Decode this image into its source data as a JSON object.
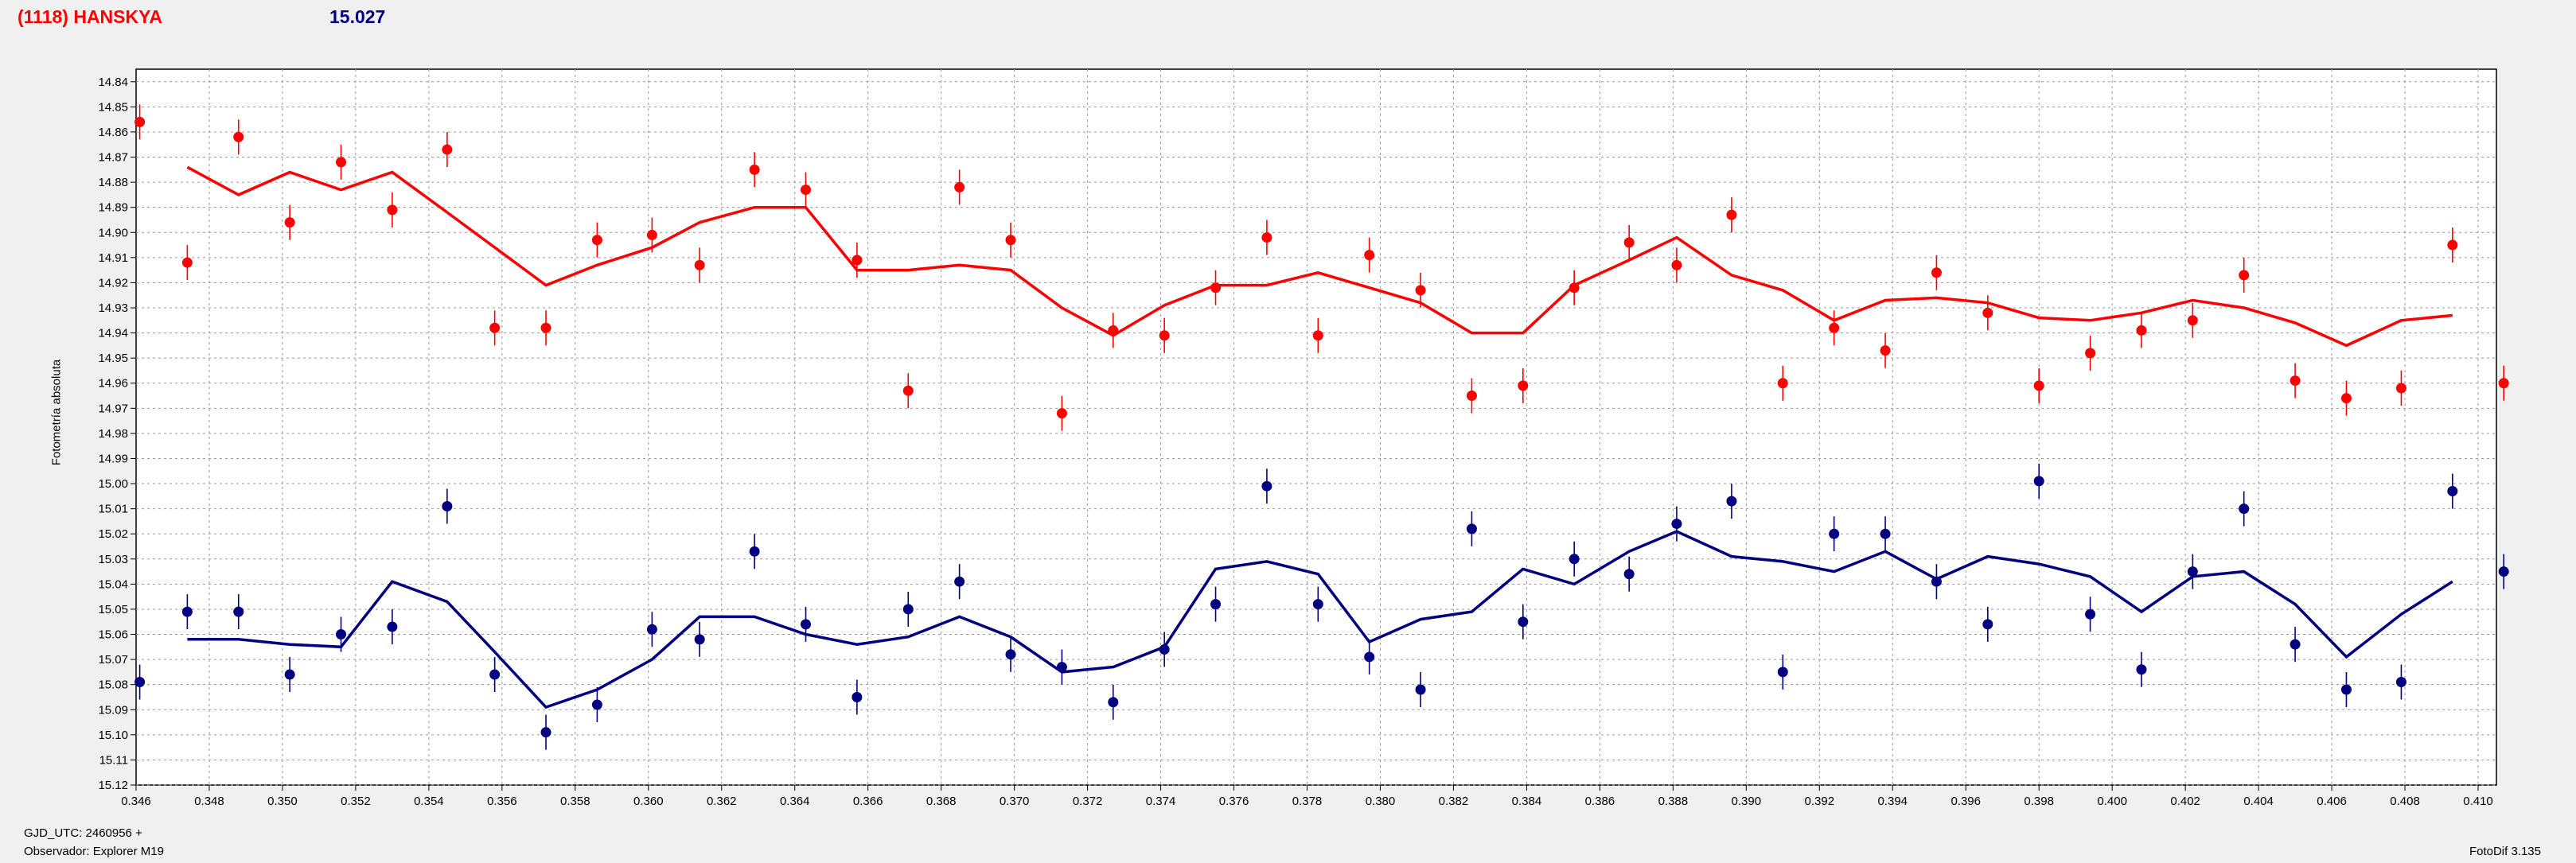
{
  "header": {
    "object_name": "(1118) HANSKYA",
    "magnitude": "15.027"
  },
  "footer": {
    "gjd": "GJD_UTC: 2460956 +",
    "observer": "Observador: Explorer M19",
    "software": "FotoDif 3.135"
  },
  "colors": {
    "series_red": "#ff0000",
    "series_blue": "#000080",
    "background": "#f0f0f0",
    "plot_bg": "#ffffff"
  },
  "chart_data": {
    "type": "scatter",
    "title": "",
    "xlabel": "",
    "ylabel": "Fotometría absoluta",
    "xlim": [
      0.346,
      0.4105
    ],
    "ylim": [
      15.12,
      14.835
    ],
    "y_inverted": true,
    "grid": true,
    "x_ticks": [
      "0.346",
      "0.348",
      "0.350",
      "0.352",
      "0.354",
      "0.356",
      "0.358",
      "0.360",
      "0.362",
      "0.364",
      "0.366",
      "0.368",
      "0.370",
      "0.372",
      "0.374",
      "0.376",
      "0.378",
      "0.380",
      "0.382",
      "0.384",
      "0.386",
      "0.388",
      "0.390",
      "0.392",
      "0.394",
      "0.396",
      "0.398",
      "0.400",
      "0.402",
      "0.404",
      "0.406",
      "0.408",
      "0.410"
    ],
    "y_ticks": [
      "14.84",
      "14.85",
      "14.86",
      "14.87",
      "14.88",
      "14.89",
      "14.90",
      "14.91",
      "14.92",
      "14.93",
      "14.94",
      "14.95",
      "14.96",
      "14.97",
      "14.98",
      "14.99",
      "15.00",
      "15.01",
      "15.02",
      "15.03",
      "15.04",
      "15.05",
      "15.06",
      "15.07",
      "15.08",
      "15.09",
      "15.10",
      "15.11",
      "15.12"
    ],
    "series": [
      {
        "color": "#ff0000",
        "points": [
          [
            0.3461,
            14.856
          ],
          [
            0.3474,
            14.912
          ],
          [
            0.3488,
            14.862
          ],
          [
            0.3502,
            14.896
          ],
          [
            0.3516,
            14.872
          ],
          [
            0.353,
            14.891
          ],
          [
            0.3545,
            14.867
          ],
          [
            0.3558,
            14.938
          ],
          [
            0.3572,
            14.938
          ],
          [
            0.3586,
            14.903
          ],
          [
            0.3601,
            14.901
          ],
          [
            0.3614,
            14.913
          ],
          [
            0.3629,
            14.875
          ],
          [
            0.3643,
            14.883
          ],
          [
            0.3657,
            14.911
          ],
          [
            0.3671,
            14.963
          ],
          [
            0.3685,
            14.882
          ],
          [
            0.3699,
            14.903
          ],
          [
            0.3713,
            14.972
          ],
          [
            0.3727,
            14.939
          ],
          [
            0.3741,
            14.941
          ],
          [
            0.3755,
            14.922
          ],
          [
            0.3769,
            14.902
          ],
          [
            0.3783,
            14.941
          ],
          [
            0.3797,
            14.909
          ],
          [
            0.3811,
            14.923
          ],
          [
            0.3825,
            14.965
          ],
          [
            0.3839,
            14.961
          ],
          [
            0.3853,
            14.922
          ],
          [
            0.3868,
            14.904
          ],
          [
            0.3881,
            14.913
          ],
          [
            0.3896,
            14.893
          ],
          [
            0.391,
            14.96
          ],
          [
            0.3924,
            14.938
          ],
          [
            0.3938,
            14.947
          ],
          [
            0.3952,
            14.916
          ],
          [
            0.3966,
            14.932
          ],
          [
            0.398,
            14.961
          ],
          [
            0.3994,
            14.948
          ],
          [
            0.4008,
            14.939
          ],
          [
            0.4022,
            14.935
          ],
          [
            0.4036,
            14.917
          ],
          [
            0.405,
            14.959
          ],
          [
            0.4064,
            14.966
          ],
          [
            0.4079,
            14.962
          ],
          [
            0.4093,
            14.905
          ],
          [
            0.4107,
            14.96
          ]
        ],
        "fit": [
          [
            0.3474,
            14.874
          ],
          [
            0.3488,
            14.885
          ],
          [
            0.3502,
            14.876
          ],
          [
            0.3516,
            14.883
          ],
          [
            0.353,
            14.876
          ],
          [
            0.3545,
            14.892
          ],
          [
            0.3572,
            14.921
          ],
          [
            0.3586,
            14.913
          ],
          [
            0.3601,
            14.906
          ],
          [
            0.3614,
            14.896
          ],
          [
            0.3629,
            14.89
          ],
          [
            0.3643,
            14.89
          ],
          [
            0.3657,
            14.915
          ],
          [
            0.3671,
            14.915
          ],
          [
            0.3685,
            14.913
          ],
          [
            0.3699,
            14.915
          ],
          [
            0.3713,
            14.93
          ],
          [
            0.3727,
            14.941
          ],
          [
            0.3741,
            14.929
          ],
          [
            0.3755,
            14.921
          ],
          [
            0.3769,
            14.921
          ],
          [
            0.3783,
            14.916
          ],
          [
            0.3797,
            14.922
          ],
          [
            0.3811,
            14.928
          ],
          [
            0.3825,
            14.94
          ],
          [
            0.3839,
            14.94
          ],
          [
            0.3853,
            14.921
          ],
          [
            0.3868,
            14.911
          ],
          [
            0.3881,
            14.902
          ],
          [
            0.3896,
            14.917
          ],
          [
            0.391,
            14.923
          ],
          [
            0.3924,
            14.935
          ],
          [
            0.3938,
            14.927
          ],
          [
            0.3952,
            14.926
          ],
          [
            0.3966,
            14.928
          ],
          [
            0.398,
            14.934
          ],
          [
            0.3994,
            14.935
          ],
          [
            0.4008,
            14.932
          ],
          [
            0.4022,
            14.927
          ],
          [
            0.4036,
            14.93
          ],
          [
            0.405,
            14.936
          ],
          [
            0.4064,
            14.945
          ],
          [
            0.4079,
            14.935
          ],
          [
            0.4093,
            14.933
          ]
        ]
      },
      {
        "color": "#000080",
        "points": [
          [
            0.3461,
            15.079
          ],
          [
            0.3474,
            15.051
          ],
          [
            0.3488,
            15.051
          ],
          [
            0.3502,
            15.076
          ],
          [
            0.3516,
            15.06
          ],
          [
            0.353,
            15.057
          ],
          [
            0.3545,
            15.009
          ],
          [
            0.3558,
            15.076
          ],
          [
            0.3572,
            15.099
          ],
          [
            0.3586,
            15.088
          ],
          [
            0.3601,
            15.058
          ],
          [
            0.3614,
            15.062
          ],
          [
            0.3629,
            15.027
          ],
          [
            0.3643,
            15.056
          ],
          [
            0.3657,
            15.085
          ],
          [
            0.3671,
            15.05
          ],
          [
            0.3685,
            15.039
          ],
          [
            0.3699,
            15.068
          ],
          [
            0.3713,
            15.073
          ],
          [
            0.3727,
            15.087
          ],
          [
            0.3741,
            15.066
          ],
          [
            0.3755,
            15.048
          ],
          [
            0.3769,
            15.001
          ],
          [
            0.3783,
            15.048
          ],
          [
            0.3797,
            15.069
          ],
          [
            0.3811,
            15.082
          ],
          [
            0.3825,
            15.018
          ],
          [
            0.3839,
            15.055
          ],
          [
            0.3853,
            15.03
          ],
          [
            0.3868,
            15.036
          ],
          [
            0.3881,
            15.016
          ],
          [
            0.3896,
            15.007
          ],
          [
            0.391,
            15.075
          ],
          [
            0.3924,
            15.02
          ],
          [
            0.3938,
            15.02
          ],
          [
            0.3952,
            15.039
          ],
          [
            0.3966,
            15.056
          ],
          [
            0.398,
            14.999
          ],
          [
            0.3994,
            15.052
          ],
          [
            0.4008,
            15.074
          ],
          [
            0.4022,
            15.035
          ],
          [
            0.4036,
            15.01
          ],
          [
            0.405,
            15.064
          ],
          [
            0.4064,
            15.082
          ],
          [
            0.4079,
            15.079
          ],
          [
            0.4093,
            15.003
          ],
          [
            0.4107,
            15.035
          ]
        ],
        "fit": [
          [
            0.3474,
            15.062
          ],
          [
            0.3488,
            15.062
          ],
          [
            0.3502,
            15.064
          ],
          [
            0.3516,
            15.065
          ],
          [
            0.353,
            15.039
          ],
          [
            0.3545,
            15.047
          ],
          [
            0.3558,
            15.067
          ],
          [
            0.3572,
            15.089
          ],
          [
            0.3586,
            15.082
          ],
          [
            0.3601,
            15.07
          ],
          [
            0.3614,
            15.053
          ],
          [
            0.3629,
            15.053
          ],
          [
            0.3643,
            15.06
          ],
          [
            0.3657,
            15.064
          ],
          [
            0.3671,
            15.061
          ],
          [
            0.3685,
            15.053
          ],
          [
            0.3699,
            15.061
          ],
          [
            0.3713,
            15.075
          ],
          [
            0.3727,
            15.073
          ],
          [
            0.3741,
            15.065
          ],
          [
            0.3755,
            15.034
          ],
          [
            0.3769,
            15.031
          ],
          [
            0.3783,
            15.036
          ],
          [
            0.3797,
            15.063
          ],
          [
            0.3811,
            15.054
          ],
          [
            0.3825,
            15.051
          ],
          [
            0.3839,
            15.034
          ],
          [
            0.3853,
            15.04
          ],
          [
            0.3868,
            15.027
          ],
          [
            0.3881,
            15.019
          ],
          [
            0.3896,
            15.029
          ],
          [
            0.391,
            15.031
          ],
          [
            0.3924,
            15.035
          ],
          [
            0.3938,
            15.027
          ],
          [
            0.3952,
            15.038
          ],
          [
            0.3966,
            15.029
          ],
          [
            0.398,
            15.032
          ],
          [
            0.3994,
            15.037
          ],
          [
            0.4008,
            15.051
          ],
          [
            0.4022,
            15.037
          ],
          [
            0.4036,
            15.035
          ],
          [
            0.405,
            15.048
          ],
          [
            0.4064,
            15.069
          ],
          [
            0.4079,
            15.052
          ],
          [
            0.4093,
            15.039
          ]
        ]
      }
    ]
  }
}
